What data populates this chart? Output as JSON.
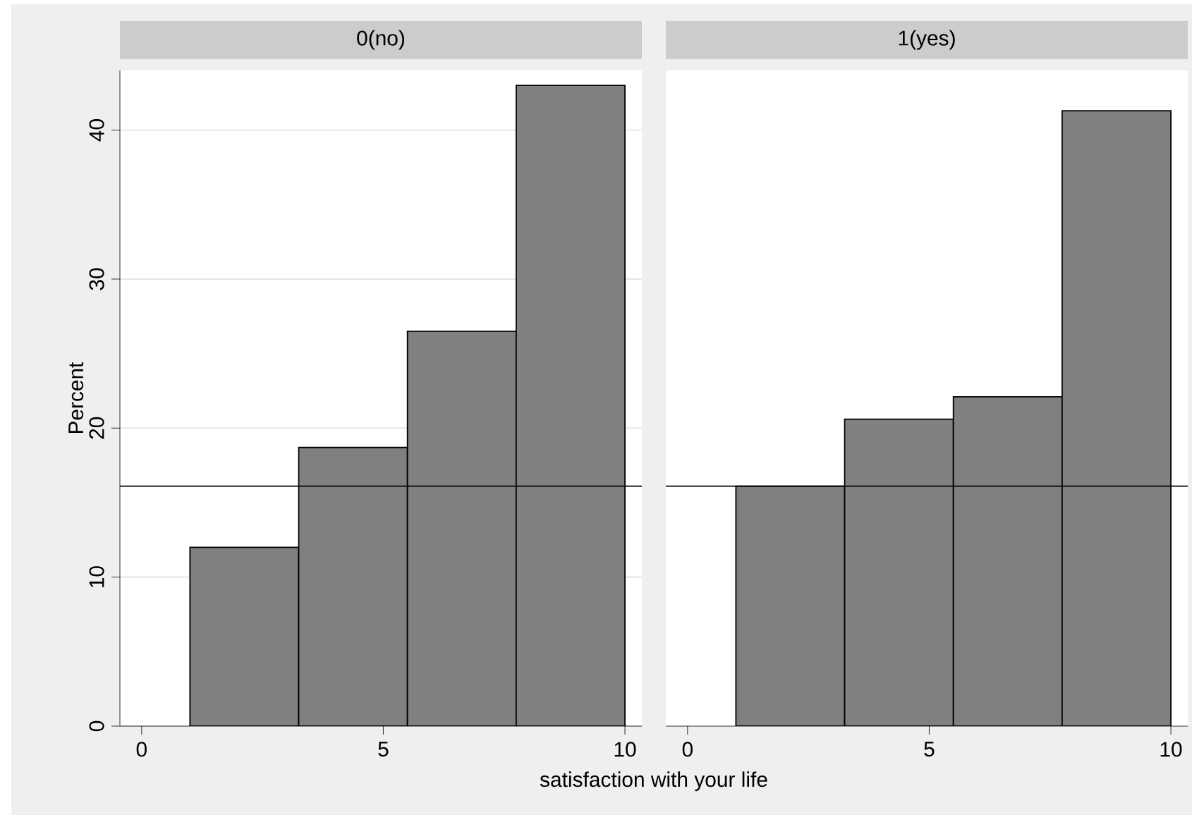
{
  "chart_data": [
    {
      "type": "histogram",
      "title": "0(no)",
      "xlabel": "satisfaction with your life",
      "ylabel": "Percent",
      "bins": [
        1,
        3.25,
        5.5,
        7.75,
        10
      ],
      "values": [
        12.0,
        18.7,
        26.5,
        43.0
      ],
      "color": "#808080",
      "xlim": [
        -0.45,
        10.35
      ],
      "xticks": [
        0,
        5,
        10
      ],
      "ylim": [
        0,
        44
      ],
      "yticks": [
        0,
        10,
        20,
        30,
        40
      ],
      "grid": "y",
      "ref_lines": [
        {
          "axis": "y",
          "value": 16.1
        }
      ]
    },
    {
      "type": "histogram",
      "title": "1(yes)",
      "bins": [
        1,
        3.25,
        5.5,
        7.75,
        10
      ],
      "values": [
        16.1,
        20.6,
        22.1,
        41.3
      ],
      "color": "#808080",
      "xlim": [
        -0.45,
        10.35
      ],
      "xticks": [
        0,
        5,
        10
      ],
      "ylim": [
        0,
        44
      ],
      "yticks": [
        0,
        10,
        20,
        30,
        40
      ],
      "grid": "y",
      "tick_labels": "x",
      "ref_lines": [
        {
          "axis": "y",
          "value": 16.1
        }
      ]
    }
  ]
}
